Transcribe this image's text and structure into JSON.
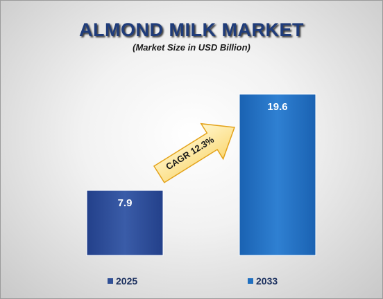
{
  "chart_data": {
    "type": "bar",
    "title": "ALMOND MILK MARKET",
    "subtitle": "(Market Size in USD Billion)",
    "categories": [
      "2025",
      "2033"
    ],
    "values": [
      7.9,
      19.6
    ],
    "value_labels": [
      "7.9",
      "19.6"
    ],
    "annotation": "CAGR 12.3%",
    "legend": [
      "2025",
      "2033"
    ],
    "legend_position": "bottom",
    "grid": false,
    "colors": {
      "bar_2025": "#2f4f96",
      "bar_2033": "#1f6fc0",
      "title": "#1f3c7a",
      "arrow_fill": "#fde9a0",
      "arrow_stroke": "#e3a21a"
    }
  }
}
